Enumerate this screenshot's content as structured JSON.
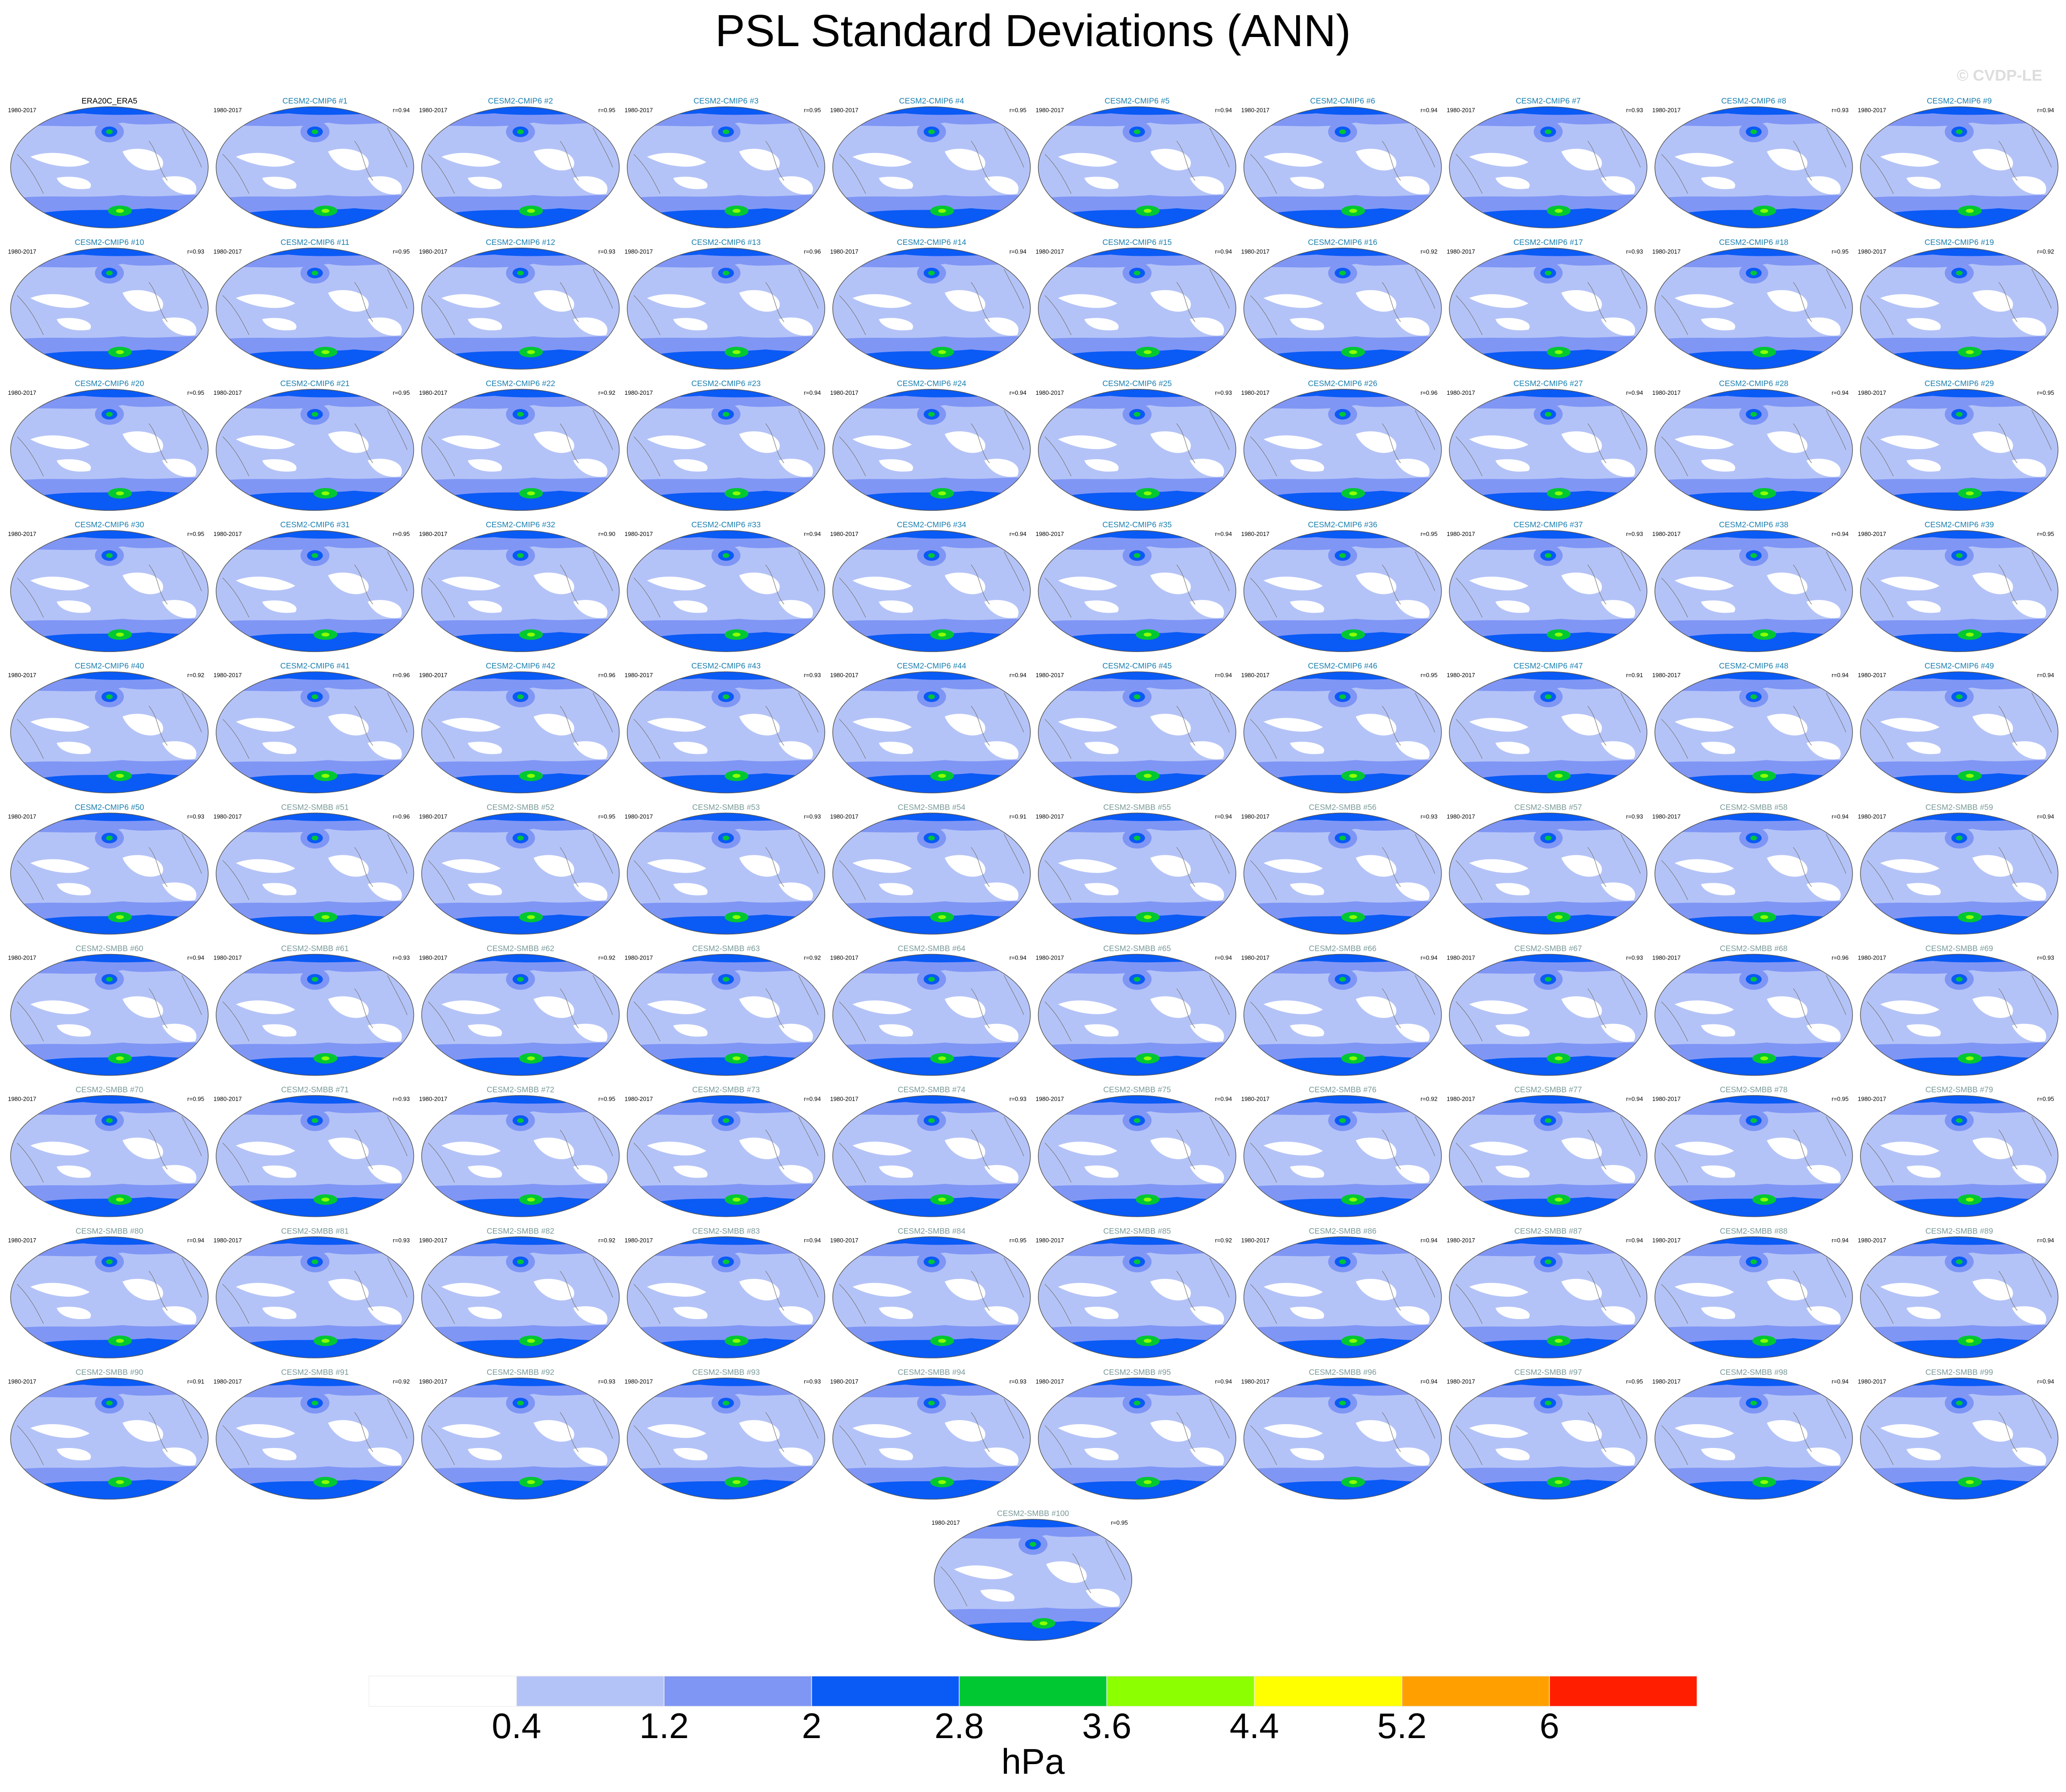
{
  "title": "PSL Standard Deviations (ANN)",
  "watermark": "© CVDP-LE",
  "panels": [
    {
      "label": "ERA20C_ERA5",
      "period": "1980-2017",
      "color": "#000000"
    },
    {
      "label": "CESM2-CMIP6 #1",
      "period": "1980-2017",
      "r": "r=0.94",
      "color": "#1a7fb0"
    },
    {
      "label": "CESM2-CMIP6 #2",
      "period": "1980-2017",
      "r": "r=0.95",
      "color": "#1a7fb0"
    },
    {
      "label": "CESM2-CMIP6 #3",
      "period": "1980-2017",
      "r": "r=0.95",
      "color": "#1a7fb0"
    },
    {
      "label": "CESM2-CMIP6 #4",
      "period": "1980-2017",
      "r": "r=0.95",
      "color": "#1a7fb0"
    },
    {
      "label": "CESM2-CMIP6 #5",
      "period": "1980-2017",
      "r": "r=0.94",
      "color": "#1a7fb0"
    },
    {
      "label": "CESM2-CMIP6 #6",
      "period": "1980-2017",
      "r": "r=0.94",
      "color": "#1a7fb0"
    },
    {
      "label": "CESM2-CMIP6 #7",
      "period": "1980-2017",
      "r": "r=0.93",
      "color": "#1a7fb0"
    },
    {
      "label": "CESM2-CMIP6 #8",
      "period": "1980-2017",
      "r": "r=0.93",
      "color": "#1a7fb0"
    },
    {
      "label": "CESM2-CMIP6 #9",
      "period": "1980-2017",
      "r": "r=0.94",
      "color": "#1a7fb0"
    },
    {
      "label": "CESM2-CMIP6 #10",
      "period": "1980-2017",
      "r": "r=0.93",
      "color": "#1a7fb0"
    },
    {
      "label": "CESM2-CMIP6 #11",
      "period": "1980-2017",
      "r": "r=0.95",
      "color": "#1a7fb0"
    },
    {
      "label": "CESM2-CMIP6 #12",
      "period": "1980-2017",
      "r": "r=0.93",
      "color": "#1a7fb0"
    },
    {
      "label": "CESM2-CMIP6 #13",
      "period": "1980-2017",
      "r": "r=0.96",
      "color": "#1a7fb0"
    },
    {
      "label": "CESM2-CMIP6 #14",
      "period": "1980-2017",
      "r": "r=0.94",
      "color": "#1a7fb0"
    },
    {
      "label": "CESM2-CMIP6 #15",
      "period": "1980-2017",
      "r": "r=0.94",
      "color": "#1a7fb0"
    },
    {
      "label": "CESM2-CMIP6 #16",
      "period": "1980-2017",
      "r": "r=0.92",
      "color": "#1a7fb0"
    },
    {
      "label": "CESM2-CMIP6 #17",
      "period": "1980-2017",
      "r": "r=0.93",
      "color": "#1a7fb0"
    },
    {
      "label": "CESM2-CMIP6 #18",
      "period": "1980-2017",
      "r": "r=0.95",
      "color": "#1a7fb0"
    },
    {
      "label": "CESM2-CMIP6 #19",
      "period": "1980-2017",
      "r": "r=0.92",
      "color": "#1a7fb0"
    },
    {
      "label": "CESM2-CMIP6 #20",
      "period": "1980-2017",
      "r": "r=0.95",
      "color": "#1a7fb0"
    },
    {
      "label": "CESM2-CMIP6 #21",
      "period": "1980-2017",
      "r": "r=0.95",
      "color": "#1a7fb0"
    },
    {
      "label": "CESM2-CMIP6 #22",
      "period": "1980-2017",
      "r": "r=0.92",
      "color": "#1a7fb0"
    },
    {
      "label": "CESM2-CMIP6 #23",
      "period": "1980-2017",
      "r": "r=0.94",
      "color": "#1a7fb0"
    },
    {
      "label": "CESM2-CMIP6 #24",
      "period": "1980-2017",
      "r": "r=0.94",
      "color": "#1a7fb0"
    },
    {
      "label": "CESM2-CMIP6 #25",
      "period": "1980-2017",
      "r": "r=0.93",
      "color": "#1a7fb0"
    },
    {
      "label": "CESM2-CMIP6 #26",
      "period": "1980-2017",
      "r": "r=0.96",
      "color": "#1a7fb0"
    },
    {
      "label": "CESM2-CMIP6 #27",
      "period": "1980-2017",
      "r": "r=0.94",
      "color": "#1a7fb0"
    },
    {
      "label": "CESM2-CMIP6 #28",
      "period": "1980-2017",
      "r": "r=0.94",
      "color": "#1a7fb0"
    },
    {
      "label": "CESM2-CMIP6 #29",
      "period": "1980-2017",
      "r": "r=0.95",
      "color": "#1a7fb0"
    },
    {
      "label": "CESM2-CMIP6 #30",
      "period": "1980-2017",
      "r": "r=0.95",
      "color": "#1a7fb0"
    },
    {
      "label": "CESM2-CMIP6 #31",
      "period": "1980-2017",
      "r": "r=0.95",
      "color": "#1a7fb0"
    },
    {
      "label": "CESM2-CMIP6 #32",
      "period": "1980-2017",
      "r": "r=0.90",
      "color": "#1a7fb0"
    },
    {
      "label": "CESM2-CMIP6 #33",
      "period": "1980-2017",
      "r": "r=0.94",
      "color": "#1a7fb0"
    },
    {
      "label": "CESM2-CMIP6 #34",
      "period": "1980-2017",
      "r": "r=0.94",
      "color": "#1a7fb0"
    },
    {
      "label": "CESM2-CMIP6 #35",
      "period": "1980-2017",
      "r": "r=0.94",
      "color": "#1a7fb0"
    },
    {
      "label": "CESM2-CMIP6 #36",
      "period": "1980-2017",
      "r": "r=0.95",
      "color": "#1a7fb0"
    },
    {
      "label": "CESM2-CMIP6 #37",
      "period": "1980-2017",
      "r": "r=0.93",
      "color": "#1a7fb0"
    },
    {
      "label": "CESM2-CMIP6 #38",
      "period": "1980-2017",
      "r": "r=0.94",
      "color": "#1a7fb0"
    },
    {
      "label": "CESM2-CMIP6 #39",
      "period": "1980-2017",
      "r": "r=0.95",
      "color": "#1a7fb0"
    },
    {
      "label": "CESM2-CMIP6 #40",
      "period": "1980-2017",
      "r": "r=0.92",
      "color": "#1a7fb0"
    },
    {
      "label": "CESM2-CMIP6 #41",
      "period": "1980-2017",
      "r": "r=0.96",
      "color": "#1a7fb0"
    },
    {
      "label": "CESM2-CMIP6 #42",
      "period": "1980-2017",
      "r": "r=0.96",
      "color": "#1a7fb0"
    },
    {
      "label": "CESM2-CMIP6 #43",
      "period": "1980-2017",
      "r": "r=0.93",
      "color": "#1a7fb0"
    },
    {
      "label": "CESM2-CMIP6 #44",
      "period": "1980-2017",
      "r": "r=0.94",
      "color": "#1a7fb0"
    },
    {
      "label": "CESM2-CMIP6 #45",
      "period": "1980-2017",
      "r": "r=0.94",
      "color": "#1a7fb0"
    },
    {
      "label": "CESM2-CMIP6 #46",
      "period": "1980-2017",
      "r": "r=0.95",
      "color": "#1a7fb0"
    },
    {
      "label": "CESM2-CMIP6 #47",
      "period": "1980-2017",
      "r": "r=0.91",
      "color": "#1a7fb0"
    },
    {
      "label": "CESM2-CMIP6 #48",
      "period": "1980-2017",
      "r": "r=0.94",
      "color": "#1a7fb0"
    },
    {
      "label": "CESM2-CMIP6 #49",
      "period": "1980-2017",
      "r": "r=0.94",
      "color": "#1a7fb0"
    },
    {
      "label": "CESM2-CMIP6 #50",
      "period": "1980-2017",
      "r": "r=0.93",
      "color": "#1a7fb0"
    },
    {
      "label": "CESM2-SMBB #51",
      "period": "1980-2017",
      "r": "r=0.96",
      "color": "#7a9a98"
    },
    {
      "label": "CESM2-SMBB #52",
      "period": "1980-2017",
      "r": "r=0.95",
      "color": "#7a9a98"
    },
    {
      "label": "CESM2-SMBB #53",
      "period": "1980-2017",
      "r": "r=0.93",
      "color": "#7a9a98"
    },
    {
      "label": "CESM2-SMBB #54",
      "period": "1980-2017",
      "r": "r=0.91",
      "color": "#7a9a98"
    },
    {
      "label": "CESM2-SMBB #55",
      "period": "1980-2017",
      "r": "r=0.94",
      "color": "#7a9a98"
    },
    {
      "label": "CESM2-SMBB #56",
      "period": "1980-2017",
      "r": "r=0.93",
      "color": "#7a9a98"
    },
    {
      "label": "CESM2-SMBB #57",
      "period": "1980-2017",
      "r": "r=0.93",
      "color": "#7a9a98"
    },
    {
      "label": "CESM2-SMBB #58",
      "period": "1980-2017",
      "r": "r=0.94",
      "color": "#7a9a98"
    },
    {
      "label": "CESM2-SMBB #59",
      "period": "1980-2017",
      "r": "r=0.94",
      "color": "#7a9a98"
    },
    {
      "label": "CESM2-SMBB #60",
      "period": "1980-2017",
      "r": "r=0.94",
      "color": "#7a9a98"
    },
    {
      "label": "CESM2-SMBB #61",
      "period": "1980-2017",
      "r": "r=0.93",
      "color": "#7a9a98"
    },
    {
      "label": "CESM2-SMBB #62",
      "period": "1980-2017",
      "r": "r=0.92",
      "color": "#7a9a98"
    },
    {
      "label": "CESM2-SMBB #63",
      "period": "1980-2017",
      "r": "r=0.92",
      "color": "#7a9a98"
    },
    {
      "label": "CESM2-SMBB #64",
      "period": "1980-2017",
      "r": "r=0.94",
      "color": "#7a9a98"
    },
    {
      "label": "CESM2-SMBB #65",
      "period": "1980-2017",
      "r": "r=0.94",
      "color": "#7a9a98"
    },
    {
      "label": "CESM2-SMBB #66",
      "period": "1980-2017",
      "r": "r=0.94",
      "color": "#7a9a98"
    },
    {
      "label": "CESM2-SMBB #67",
      "period": "1980-2017",
      "r": "r=0.93",
      "color": "#7a9a98"
    },
    {
      "label": "CESM2-SMBB #68",
      "period": "1980-2017",
      "r": "r=0.96",
      "color": "#7a9a98"
    },
    {
      "label": "CESM2-SMBB #69",
      "period": "1980-2017",
      "r": "r=0.93",
      "color": "#7a9a98"
    },
    {
      "label": "CESM2-SMBB #70",
      "period": "1980-2017",
      "r": "r=0.95",
      "color": "#7a9a98"
    },
    {
      "label": "CESM2-SMBB #71",
      "period": "1980-2017",
      "r": "r=0.93",
      "color": "#7a9a98"
    },
    {
      "label": "CESM2-SMBB #72",
      "period": "1980-2017",
      "r": "r=0.95",
      "color": "#7a9a98"
    },
    {
      "label": "CESM2-SMBB #73",
      "period": "1980-2017",
      "r": "r=0.94",
      "color": "#7a9a98"
    },
    {
      "label": "CESM2-SMBB #74",
      "period": "1980-2017",
      "r": "r=0.93",
      "color": "#7a9a98"
    },
    {
      "label": "CESM2-SMBB #75",
      "period": "1980-2017",
      "r": "r=0.94",
      "color": "#7a9a98"
    },
    {
      "label": "CESM2-SMBB #76",
      "period": "1980-2017",
      "r": "r=0.92",
      "color": "#7a9a98"
    },
    {
      "label": "CESM2-SMBB #77",
      "period": "1980-2017",
      "r": "r=0.94",
      "color": "#7a9a98"
    },
    {
      "label": "CESM2-SMBB #78",
      "period": "1980-2017",
      "r": "r=0.95",
      "color": "#7a9a98"
    },
    {
      "label": "CESM2-SMBB #79",
      "period": "1980-2017",
      "r": "r=0.95",
      "color": "#7a9a98"
    },
    {
      "label": "CESM2-SMBB #80",
      "period": "1980-2017",
      "r": "r=0.94",
      "color": "#7a9a98"
    },
    {
      "label": "CESM2-SMBB #81",
      "period": "1980-2017",
      "r": "r=0.93",
      "color": "#7a9a98"
    },
    {
      "label": "CESM2-SMBB #82",
      "period": "1980-2017",
      "r": "r=0.92",
      "color": "#7a9a98"
    },
    {
      "label": "CESM2-SMBB #83",
      "period": "1980-2017",
      "r": "r=0.94",
      "color": "#7a9a98"
    },
    {
      "label": "CESM2-SMBB #84",
      "period": "1980-2017",
      "r": "r=0.95",
      "color": "#7a9a98"
    },
    {
      "label": "CESM2-SMBB #85",
      "period": "1980-2017",
      "r": "r=0.92",
      "color": "#7a9a98"
    },
    {
      "label": "CESM2-SMBB #86",
      "period": "1980-2017",
      "r": "r=0.94",
      "color": "#7a9a98"
    },
    {
      "label": "CESM2-SMBB #87",
      "period": "1980-2017",
      "r": "r=0.94",
      "color": "#7a9a98"
    },
    {
      "label": "CESM2-SMBB #88",
      "period": "1980-2017",
      "r": "r=0.94",
      "color": "#7a9a98"
    },
    {
      "label": "CESM2-SMBB #89",
      "period": "1980-2017",
      "r": "r=0.94",
      "color": "#7a9a98"
    },
    {
      "label": "CESM2-SMBB #90",
      "period": "1980-2017",
      "r": "r=0.91",
      "color": "#7a9a98"
    },
    {
      "label": "CESM2-SMBB #91",
      "period": "1980-2017",
      "r": "r=0.92",
      "color": "#7a9a98"
    },
    {
      "label": "CESM2-SMBB #92",
      "period": "1980-2017",
      "r": "r=0.93",
      "color": "#7a9a98"
    },
    {
      "label": "CESM2-SMBB #93",
      "period": "1980-2017",
      "r": "r=0.93",
      "color": "#7a9a98"
    },
    {
      "label": "CESM2-SMBB #94",
      "period": "1980-2017",
      "r": "r=0.93",
      "color": "#7a9a98"
    },
    {
      "label": "CESM2-SMBB #95",
      "period": "1980-2017",
      "r": "r=0.94",
      "color": "#7a9a98"
    },
    {
      "label": "CESM2-SMBB #96",
      "period": "1980-2017",
      "r": "r=0.94",
      "color": "#7a9a98"
    },
    {
      "label": "CESM2-SMBB #97",
      "period": "1980-2017",
      "r": "r=0.95",
      "color": "#7a9a98"
    },
    {
      "label": "CESM2-SMBB #98",
      "period": "1980-2017",
      "r": "r=0.94",
      "color": "#7a9a98"
    },
    {
      "label": "CESM2-SMBB #99",
      "period": "1980-2017",
      "r": "r=0.94",
      "color": "#7a9a98"
    },
    {
      "label": "CESM2-SMBB #100",
      "period": "1980-2017",
      "r": "r=0.95",
      "color": "#7a9a98"
    }
  ],
  "colorbar": {
    "levels": [
      0.4,
      1.2,
      2,
      2.8,
      3.6,
      4.4,
      5.2,
      6
    ],
    "colors": [
      "#ffffff",
      "#b4c3f7",
      "#8096f5",
      "#0a5af5",
      "#00c832",
      "#8cff00",
      "#ffff00",
      "#ffa000",
      "#ff1e00"
    ],
    "unit": "hPa"
  }
}
